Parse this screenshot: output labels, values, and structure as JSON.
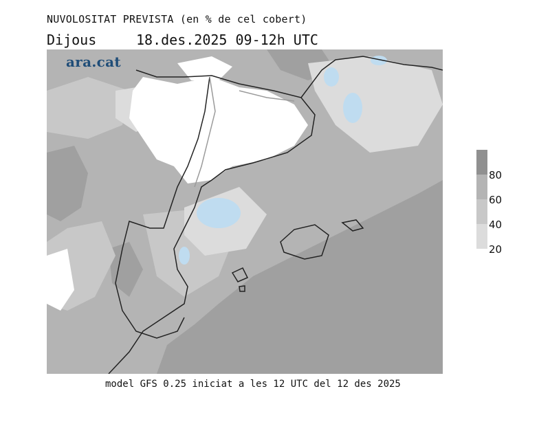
{
  "header": {
    "title": "NUVOLOSITAT PREVISTA (en % de cel cobert)",
    "day": "Dijous",
    "datetime": "18.des.2025 09-12h UTC"
  },
  "logo": {
    "text": "ara.cat"
  },
  "legend": {
    "items": [
      {
        "label": "80",
        "color": "#a0a0a0"
      },
      {
        "label": "60",
        "color": "#b4b4b4"
      },
      {
        "label": "40",
        "color": "#c8c8c8"
      },
      {
        "label": "20",
        "color": "#dcdcdc"
      }
    ],
    "top_color": "#909090"
  },
  "map": {
    "land_border_color": "#222222",
    "internal_border_color": "#9a9a9a",
    "low_cloud_color": "#bfdcf0"
  },
  "footer": {
    "text": "model GFS 0.25 iniciat a les 12 UTC del 12 des 2025"
  }
}
